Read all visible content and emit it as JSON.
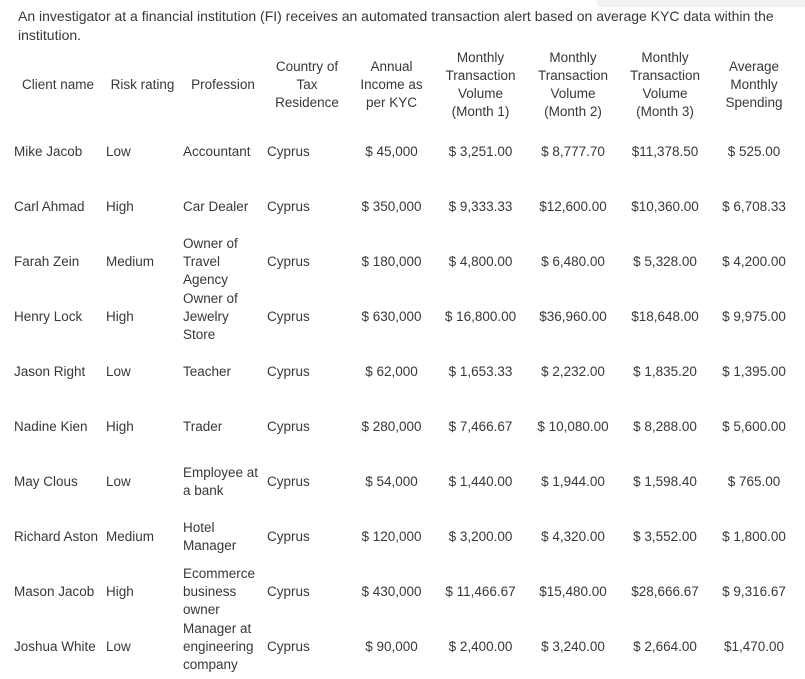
{
  "intro": {
    "text": "An investigator at a financial institution (FI) receives an automated transaction alert based on average KYC data within the institution."
  },
  "colors": {
    "background": "#ffffff",
    "text": "#383838"
  },
  "table": {
    "columns": [
      {
        "id": "client-name",
        "label": "Client name"
      },
      {
        "id": "risk-rating",
        "label": "Risk rating"
      },
      {
        "id": "profession",
        "label": "Profession"
      },
      {
        "id": "country-of-tax-residence",
        "label": "Country of Tax Residence"
      },
      {
        "id": "annual-income-per-kyc",
        "label": "Annual Income as per KYC"
      },
      {
        "id": "monthly-transaction-volume-month-1",
        "label": "Monthly Transaction Volume (Month 1)"
      },
      {
        "id": "monthly-transaction-volume-month-2",
        "label": "Monthly Transaction Volume (Month 2)"
      },
      {
        "id": "monthly-transaction-volume-month-3",
        "label": "Monthly Transaction Volume (Month 3)"
      },
      {
        "id": "average-monthly-spending",
        "label": "Average Monthly Spending"
      }
    ],
    "rows": [
      [
        "Mike Jacob",
        "Low",
        "Accountant",
        "Cyprus",
        "$ 45,000",
        "$ 3,251.00",
        "$ 8,777.70",
        "$11,378.50",
        "$ 525.00"
      ],
      [
        "Carl Ahmad",
        "High",
        "Car Dealer",
        "Cyprus",
        "$ 350,000",
        "$ 9,333.33",
        "$12,600.00",
        "$10,360.00",
        "$ 6,708.33"
      ],
      [
        "Farah Zein",
        "Medium",
        "Owner of Travel Agency",
        "Cyprus",
        "$ 180,000",
        "$ 4,800.00",
        "$ 6,480.00",
        "$ 5,328.00",
        "$ 4,200.00"
      ],
      [
        "Henry Lock",
        "High",
        "Owner of Jewelry Store",
        "Cyprus",
        "$ 630,000",
        "$ 16,800.00",
        "$36,960.00",
        "$18,648.00",
        "$ 9,975.00"
      ],
      [
        "Jason Right",
        "Low",
        "Teacher",
        "Cyprus",
        "$ 62,000",
        "$ 1,653.33",
        "$ 2,232.00",
        "$ 1,835.20",
        "$ 1,395.00"
      ],
      [
        "Nadine Kien",
        "High",
        "Trader",
        "Cyprus",
        "$ 280,000",
        "$ 7,466.67",
        "$ 10,080.00",
        "$ 8,288.00",
        "$ 5,600.00"
      ],
      [
        "May Clous",
        "Low",
        "Employee at a bank",
        "Cyprus",
        "$ 54,000",
        "$ 1,440.00",
        "$ 1,944.00",
        "$ 1,598.40",
        "$ 765.00"
      ],
      [
        "Richard Aston",
        "Medium",
        "Hotel Manager",
        "Cyprus",
        "$ 120,000",
        "$ 3,200.00",
        "$ 4,320.00",
        "$ 3,552.00",
        "$ 1,800.00"
      ],
      [
        "Mason Jacob",
        "High",
        "Ecommerce business owner",
        "Cyprus",
        "$ 430,000",
        "$ 11,466.67",
        "$15,480.00",
        "$28,666.67",
        "$ 9,316.67"
      ],
      [
        "Joshua White",
        "Low",
        "Manager at engineering company",
        "Cyprus",
        "$ 90,000",
        "$ 2,400.00",
        "$ 3,240.00",
        "$ 2,664.00",
        "$1,470.00"
      ]
    ]
  }
}
